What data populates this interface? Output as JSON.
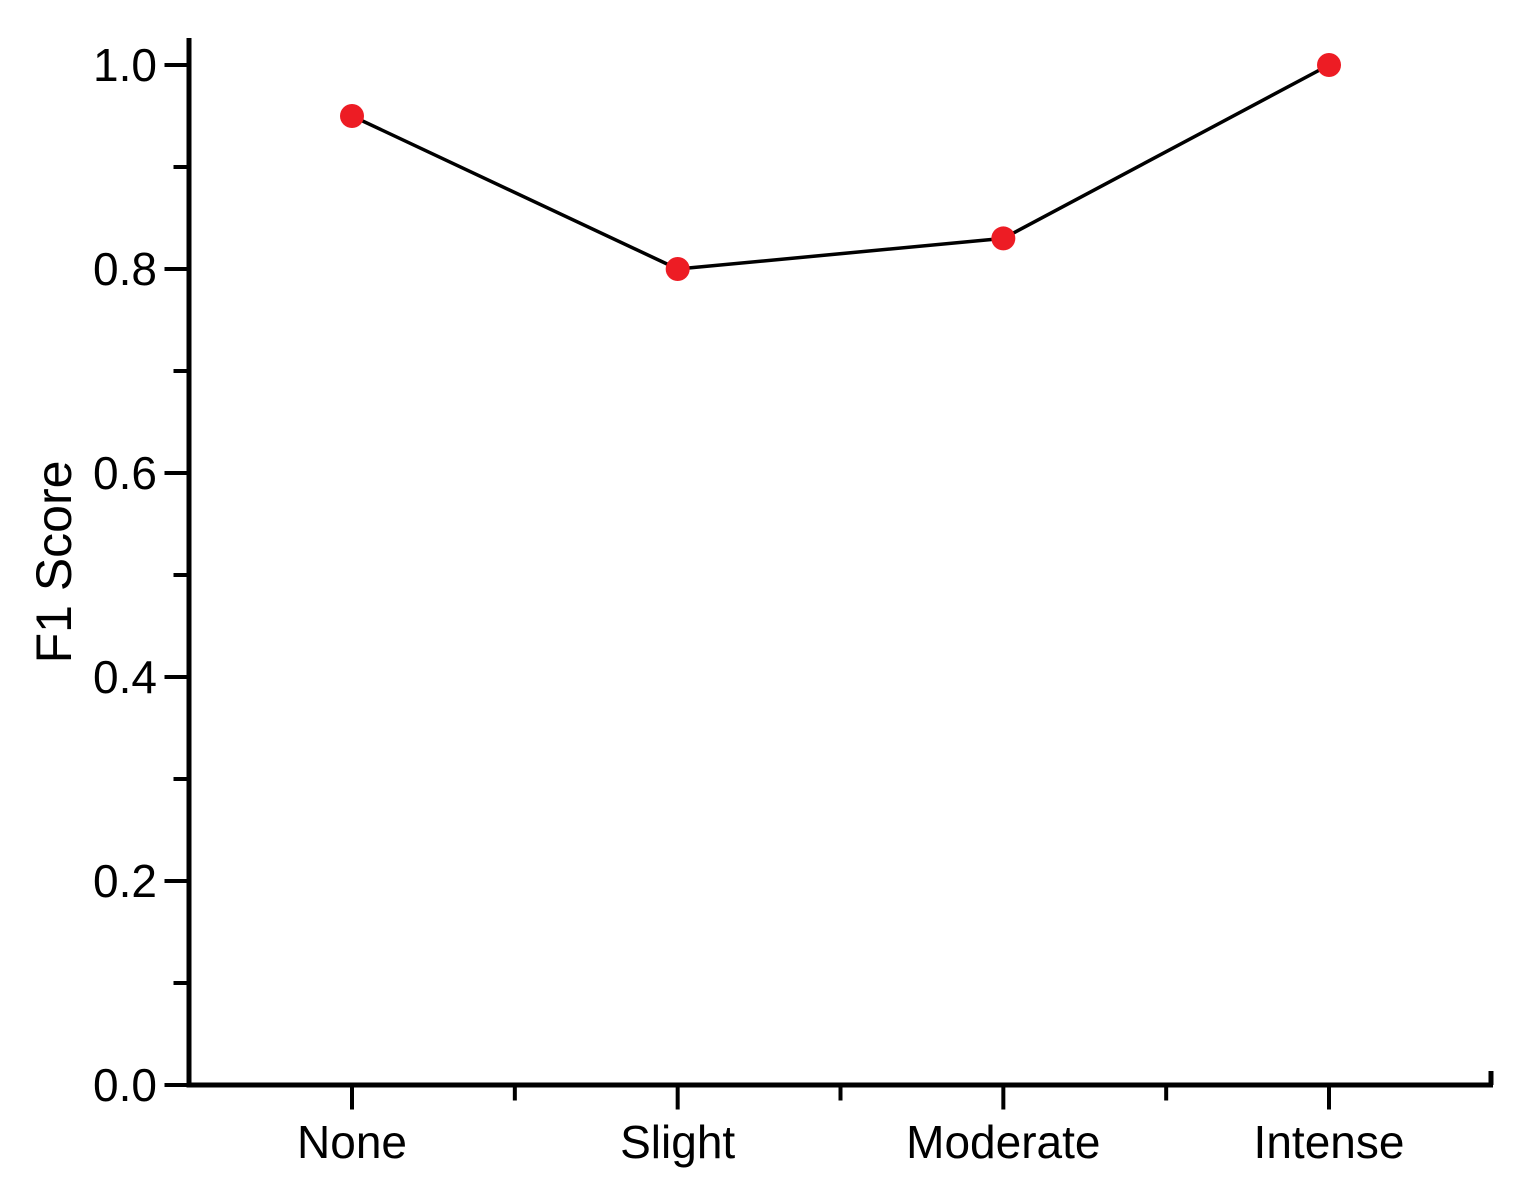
{
  "chart_data": {
    "type": "line",
    "title": "",
    "xlabel": "",
    "ylabel": "F1 Score",
    "categories": [
      "None",
      "Slight",
      "Moderate",
      "Intense"
    ],
    "series": [
      {
        "name": "F1 Score",
        "values": [
          0.95,
          0.8,
          0.83,
          1.0
        ]
      }
    ],
    "ylim": [
      0.0,
      1.03
    ],
    "yticks": [
      0.0,
      0.2,
      0.4,
      0.6,
      0.8,
      1.0
    ],
    "ytick_labels": [
      "0.0",
      "0.2",
      "0.4",
      "0.6",
      "0.8",
      "1.0"
    ],
    "minor_ticks_between_majors": true,
    "grid": false,
    "legend_position": "none",
    "marker_color": "#ed1c24",
    "line_color": "#000000",
    "axis_color": "#000000",
    "background_color": "#ffffff"
  }
}
